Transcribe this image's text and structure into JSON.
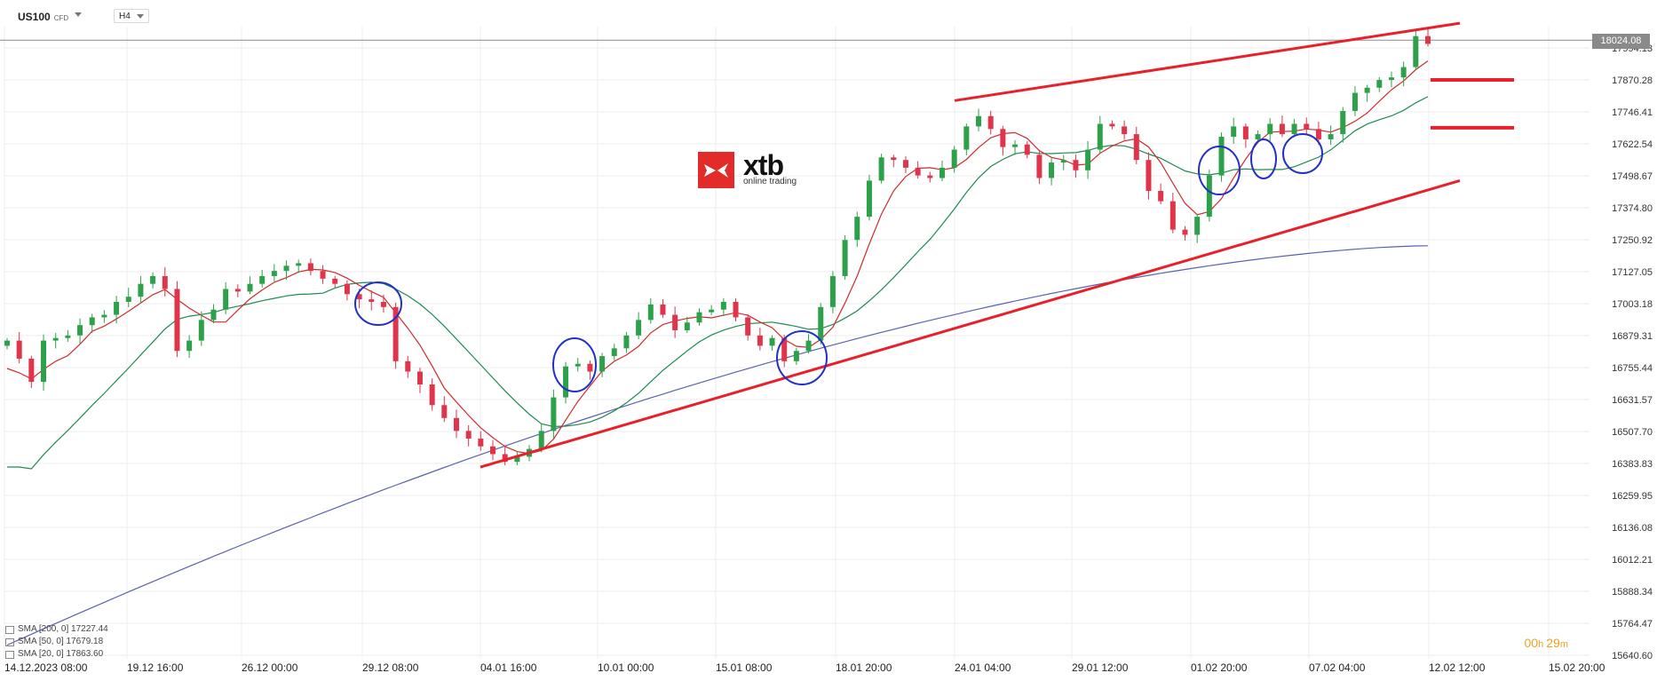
{
  "header": {
    "symbol": "US100",
    "symbol_tag": "CFD",
    "timeframe": "H4"
  },
  "logo": {
    "brand": "xtb",
    "tagline": "online trading"
  },
  "current_price": "18024.08",
  "timer": {
    "h": "00",
    "m": "29"
  },
  "legend": [
    {
      "label": "SMA [200, 0] 17227.44",
      "color": "#5a62b0"
    },
    {
      "label": "SMA [50, 0] 17679.18",
      "color": "#1d8a50"
    },
    {
      "label": "SMA [20, 0] 17863.60",
      "color": "#d02b2b"
    }
  ],
  "chart_data": {
    "type": "candlestick",
    "y_ticks": [
      "17994.13",
      "17870.28",
      "17746.41",
      "17622.54",
      "17498.67",
      "17374.80",
      "17250.92",
      "17127.05",
      "17003.18",
      "16879.31",
      "16755.44",
      "16631.57",
      "16507.70",
      "16383.83",
      "16259.95",
      "16136.08",
      "16012.21",
      "15888.34",
      "15764.47",
      "15640.60"
    ],
    "y_range": [
      15640.6,
      18110.0
    ],
    "x_ticks": [
      "14.12.2023  08:00",
      "19.12  16:00",
      "26.12  00:00",
      "29.12  08:00",
      "04.01  16:00",
      "10.01  00:00",
      "15.01  08:00",
      "18.01  20:00",
      "24.01  04:00",
      "29.01  12:00",
      "01.02  20:00",
      "07.02  04:00",
      "12.02  12:00",
      "15.02  20:00"
    ],
    "candles": [
      16860,
      16790,
      16700,
      16860,
      16870,
      16880,
      16920,
      16950,
      16960,
      17010,
      17030,
      17080,
      17110,
      17060,
      16820,
      16860,
      16940,
      16980,
      17060,
      17050,
      17080,
      17110,
      17130,
      17150,
      17160,
      17130,
      17100,
      17080,
      17040,
      17020,
      17010,
      16990,
      16780,
      16740,
      16690,
      16610,
      16560,
      16510,
      16480,
      16450,
      16420,
      16390,
      16410,
      16440,
      16510,
      16640,
      16760,
      16770,
      16740,
      16800,
      16830,
      16880,
      16940,
      17000,
      16960,
      16900,
      16930,
      16970,
      16980,
      17010,
      16950,
      16880,
      16840,
      16870,
      16780,
      16820,
      16860,
      16990,
      17110,
      17250,
      17340,
      17480,
      17570,
      17560,
      17530,
      17500,
      17490,
      17530,
      17600,
      17690,
      17730,
      17680,
      17610,
      17620,
      17580,
      17490,
      17550,
      17560,
      17520,
      17600,
      17700,
      17690,
      17660,
      17560,
      17440,
      17400,
      17290,
      17270,
      17340,
      17500,
      17650,
      17690,
      17640,
      17660,
      17700,
      17660,
      17700,
      17680,
      17640,
      17660,
      17750,
      17820,
      17840,
      17870,
      17880,
      17920,
      18040,
      18010
    ],
    "series": [
      {
        "name": "SMA [200, 0]",
        "value": 17227.44
      },
      {
        "name": "SMA [50, 0]",
        "value": 17679.18
      },
      {
        "name": "SMA [20, 0]",
        "value": 17863.6
      }
    ],
    "annotations": {
      "channel_upper": [
        [
          "24.01  04:00",
          17790
        ],
        [
          "12.02  12:00",
          18090
        ]
      ],
      "channel_lower": [
        [
          "04.01  16:00",
          16370
        ],
        [
          "12.02  12:00",
          17480
        ]
      ],
      "marker_levels": [
        17870.28,
        17685
      ],
      "circles": [
        "29.12  08:00",
        "07.01",
        "16.01",
        "01.02  20:00",
        "03.02",
        "05.02"
      ]
    }
  }
}
